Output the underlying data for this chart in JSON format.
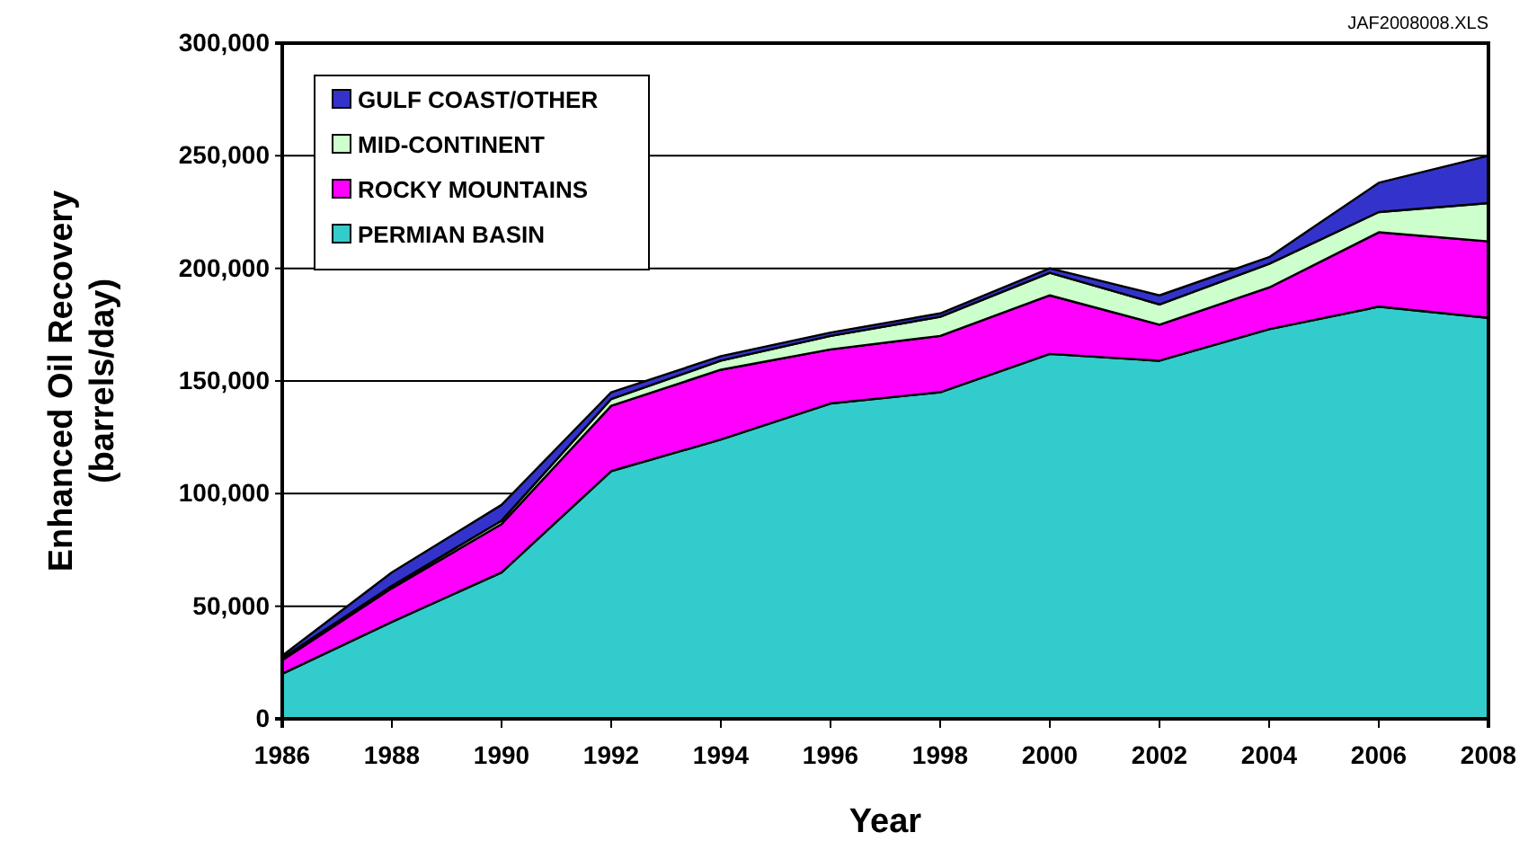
{
  "chart_data": {
    "type": "area",
    "stacked": true,
    "xlabel": "Year",
    "ylabel": "Enhanced Oil Recovery\n(barrels/day)",
    "annotations": [
      "JAF2008008.XLS"
    ],
    "x": [
      1986,
      1988,
      1990,
      1992,
      1994,
      1996,
      1998,
      2000,
      2002,
      2004,
      2006,
      2008
    ],
    "xlim": [
      1986,
      2008
    ],
    "xticks": [
      1986,
      1988,
      1990,
      1992,
      1994,
      1996,
      1998,
      2000,
      2002,
      2004,
      2006,
      2008
    ],
    "ylim": [
      0,
      300000
    ],
    "yticks": [
      {
        "value": 0,
        "label": "0"
      },
      {
        "value": 50000,
        "label": "50,000"
      },
      {
        "value": 100000,
        "label": "100,000"
      },
      {
        "value": 150000,
        "label": "150,000"
      },
      {
        "value": 200000,
        "label": "200,000"
      },
      {
        "value": 250000,
        "label": "250,000"
      },
      {
        "value": 300000,
        "label": "300,000"
      }
    ],
    "grid": "y",
    "legend": "top left",
    "series": [
      {
        "name": "PERMIAN BASIN",
        "color": "#33cccc",
        "values": [
          20000,
          43000,
          65000,
          110000,
          124000,
          140000,
          145000,
          162000,
          159000,
          173000,
          183000,
          178000
        ]
      },
      {
        "name": "ROCKY MOUNTAINS",
        "color": "#ff00ff",
        "values": [
          6000,
          15000,
          21500,
          29000,
          31000,
          24000,
          25000,
          26000,
          16000,
          18500,
          33000,
          34000
        ]
      },
      {
        "name": "MID-CONTINENT",
        "color": "#ccffcc",
        "values": [
          1000,
          1000,
          1500,
          3000,
          4000,
          6000,
          8500,
          10000,
          9000,
          10500,
          9000,
          17000
        ]
      },
      {
        "name": "GULF COAST/OTHER",
        "color": "#3333cc",
        "values": [
          1000,
          6000,
          7000,
          3000,
          2000,
          1500,
          1500,
          2000,
          4000,
          3000,
          13000,
          21000
        ]
      }
    ]
  }
}
